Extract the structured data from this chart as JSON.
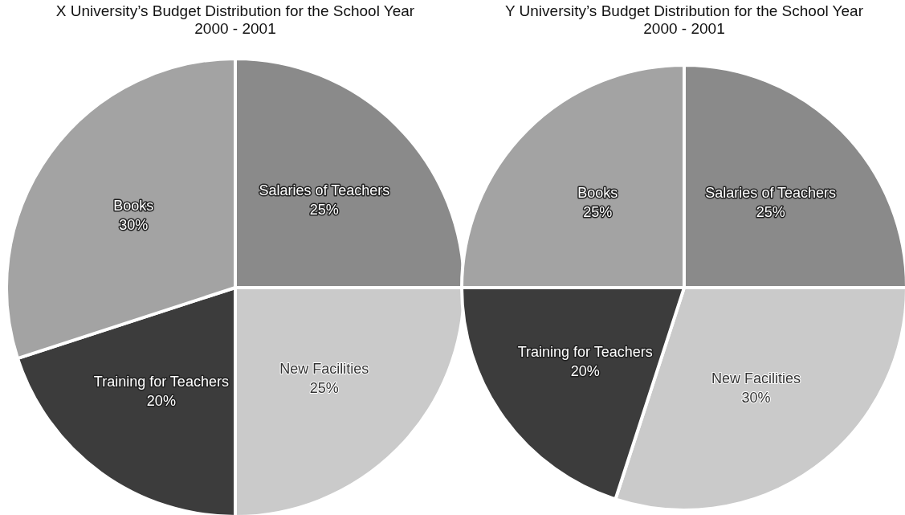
{
  "chart_data": [
    {
      "type": "pie",
      "title": "X University’s Budget Distribution for the School Year 2000 - 2001",
      "categories": [
        "Salaries of Teachers",
        "New Facilities",
        "Training for Teachers",
        "Books"
      ],
      "values": [
        25,
        25,
        20,
        30
      ],
      "colors": [
        "#8a8a8a",
        "#cacaca",
        "#3c3c3c",
        "#a3a3a3"
      ],
      "value_labels": [
        "25%",
        "25%",
        "20%",
        "30%"
      ]
    },
    {
      "type": "pie",
      "title": "Y University’s Budget Distribution for the School Year 2000 - 2001",
      "categories": [
        "Salaries of Teachers",
        "New Facilities",
        "Training for Teachers",
        "Books"
      ],
      "values": [
        25,
        30,
        20,
        25
      ],
      "colors": [
        "#8a8a8a",
        "#cacaca",
        "#3c3c3c",
        "#a3a3a3"
      ],
      "value_labels": [
        "25%",
        "30%",
        "20%",
        "25%"
      ]
    }
  ]
}
